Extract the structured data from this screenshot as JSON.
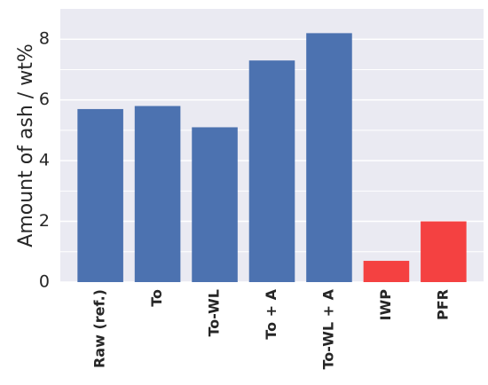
{
  "chart_data": {
    "type": "bar",
    "ylabel": "Amount of ash / wt%",
    "categories": [
      "Raw (ref.)",
      "To",
      "To-WL",
      "To + A",
      "To-WL + A",
      "IWP",
      "PFR"
    ],
    "values": [
      5.7,
      5.8,
      5.1,
      7.3,
      8.2,
      0.7,
      2.0
    ],
    "colors": [
      "#4c72b0",
      "#4c72b0",
      "#4c72b0",
      "#4c72b0",
      "#4c72b0",
      "#f44141",
      "#f44141"
    ],
    "ylim": [
      0,
      9
    ],
    "yticks": [
      0,
      2,
      4,
      6,
      8
    ],
    "minor_yticks": [
      1,
      3,
      5,
      7
    ],
    "grid": true
  }
}
